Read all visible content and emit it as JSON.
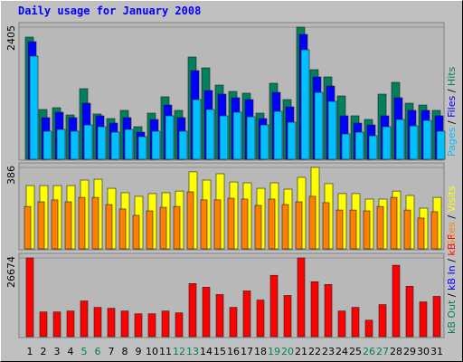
{
  "title": "Daily usage for January 2008",
  "separator": "/",
  "categories": [
    "1",
    "2",
    "3",
    "4",
    "5",
    "6",
    "7",
    "8",
    "9",
    "10",
    "11",
    "12",
    "13",
    "14",
    "15",
    "16",
    "17",
    "18",
    "19",
    "20",
    "21",
    "22",
    "23",
    "24",
    "25",
    "26",
    "27",
    "28",
    "29",
    "30",
    "31"
  ],
  "category_label_colors": [
    "#000",
    "#000",
    "#000",
    "#000",
    "#00805c",
    "#00805c",
    "#000",
    "#000",
    "#000",
    "#000",
    "#000",
    "#00805c",
    "#00805c",
    "#000",
    "#000",
    "#000",
    "#000",
    "#000",
    "#00805c",
    "#00805c",
    "#000",
    "#000",
    "#000",
    "#000",
    "#000",
    "#00805c",
    "#00805c",
    "#000",
    "#000",
    "#000",
    "#000"
  ],
  "chart_data": [
    {
      "type": "bar",
      "ylim": [
        0,
        2405
      ],
      "yticks": [
        2405
      ],
      "series": [
        {
          "name": "Hits",
          "color": "#00805c",
          "values": [
            2224,
            906,
            939,
            807,
            1285,
            824,
            741,
            890,
            593,
            840,
            1137,
            890,
            1861,
            1664,
            1351,
            1235,
            1203,
            840,
            1384,
            1087,
            2405,
            1631,
            1499,
            1153,
            791,
            725,
            1186,
            1400,
            1021,
            988,
            890
          ]
        },
        {
          "name": "Files",
          "color": "#0000ff",
          "values": [
            2141,
            758,
            857,
            758,
            1021,
            791,
            659,
            758,
            494,
            725,
            988,
            758,
            1614,
            1252,
            1186,
            1120,
            1087,
            741,
            1219,
            955,
            2273,
            1499,
            1334,
            791,
            659,
            626,
            791,
            1120,
            890,
            890,
            791
          ]
        },
        {
          "name": "Pages",
          "color": "#00c0ff",
          "values": [
            1878,
            511,
            544,
            511,
            626,
            593,
            494,
            544,
            412,
            511,
            791,
            511,
            1087,
            906,
            791,
            857,
            774,
            626,
            873,
            675,
            1993,
            1219,
            1054,
            461,
            494,
            428,
            593,
            725,
            609,
            708,
            511
          ]
        }
      ]
    },
    {
      "type": "bar",
      "ylim": [
        0,
        386
      ],
      "yticks": [
        386
      ],
      "series": [
        {
          "name": "Visits",
          "color": "#ffff00",
          "values": [
            300,
            300,
            300,
            300,
            326,
            330,
            287,
            266,
            249,
            262,
            266,
            274,
            365,
            326,
            356,
            317,
            313,
            287,
            313,
            283,
            339,
            386,
            309,
            262,
            262,
            236,
            236,
            274,
            253,
            193,
            244
          ]
        },
        {
          "name": "Sites",
          "color": "#ff8000",
          "values": [
            201,
            223,
            232,
            223,
            244,
            244,
            210,
            189,
            159,
            180,
            197,
            201,
            270,
            232,
            232,
            240,
            236,
            206,
            236,
            210,
            223,
            249,
            219,
            184,
            184,
            180,
            201,
            244,
            184,
            146,
            176
          ]
        }
      ]
    },
    {
      "type": "bar",
      "ylim": [
        0,
        26674
      ],
      "yticks": [
        26674
      ],
      "series": [
        {
          "name": "kB F",
          "color": "#ff0000",
          "values": [
            26674,
            8374,
            8374,
            8685,
            12097,
            9925,
            9615,
            8685,
            7754,
            7754,
            8685,
            8064,
            17989,
            16749,
            14267,
            9925,
            15508,
            12407,
            20781,
            13957,
            26674,
            18610,
            17679,
            8685,
            9925,
            5583,
            10856,
            24192,
            17059,
            11787,
            13647
          ]
        },
        {
          "name": "kB In",
          "color": "#0000ff"
        },
        {
          "name": "kB Out",
          "color": "#00805c"
        }
      ]
    }
  ]
}
